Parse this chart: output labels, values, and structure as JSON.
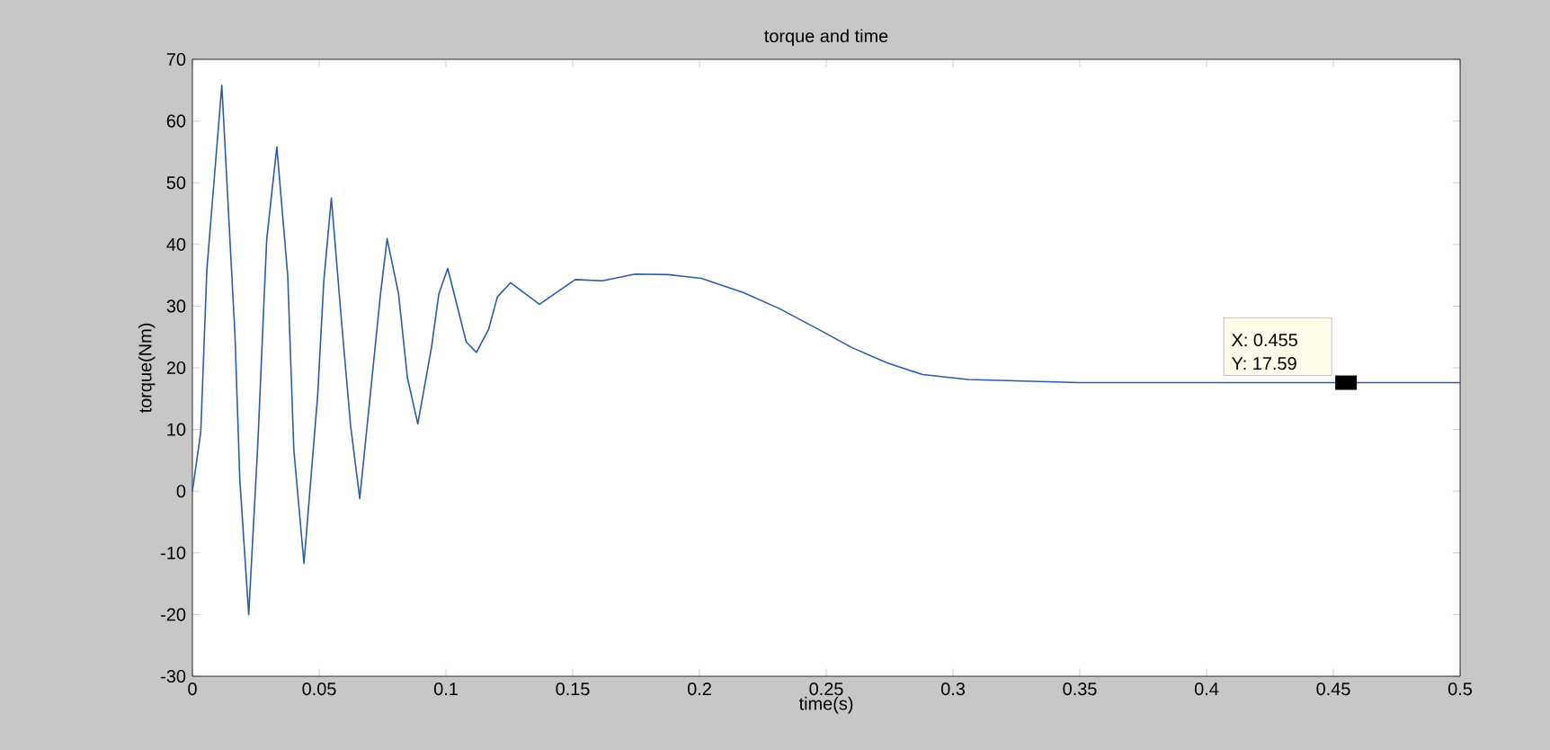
{
  "chart_data": {
    "type": "line",
    "title": "torque and time",
    "xlabel": "time(s)",
    "ylabel": "torque(Nm)",
    "x": [
      0,
      0.0033,
      0.0057,
      0.0116,
      0.0168,
      0.0187,
      0.0222,
      0.0258,
      0.0293,
      0.0333,
      0.0376,
      0.04,
      0.044,
      0.0494,
      0.0518,
      0.0548,
      0.0589,
      0.0624,
      0.066,
      0.0706,
      0.0742,
      0.0768,
      0.0813,
      0.0848,
      0.0889,
      0.0943,
      0.0972,
      0.1007,
      0.105,
      0.108,
      0.112,
      0.1168,
      0.1203,
      0.1255,
      0.1369,
      0.151,
      0.1617,
      0.1747,
      0.1877,
      0.2007,
      0.2172,
      0.2315,
      0.248,
      0.26,
      0.274,
      0.288,
      0.306,
      0.35,
      0.455,
      0.5
    ],
    "series": [
      {
        "color": "#2a5caa",
        "values": [
          0,
          9.6,
          35.9,
          65.8,
          25.2,
          1.9,
          -20,
          7.7,
          40.8,
          55.8,
          34.9,
          6.7,
          -11.7,
          15.5,
          33.9,
          47.5,
          27.1,
          10.6,
          -1.2,
          17.4,
          32,
          40.9,
          32,
          18.4,
          10.9,
          23.3,
          32,
          36.1,
          29.1,
          24.2,
          22.5,
          26.2,
          31.5,
          33.8,
          30.3,
          34.3,
          34.1,
          35.2,
          35.1,
          34.5,
          32.2,
          29.6,
          26,
          23.3,
          20.8,
          18.9,
          18.1,
          17.6,
          17.6,
          17.6
        ]
      }
    ],
    "xlim": [
      0,
      0.5
    ],
    "ylim": [
      -30,
      70
    ],
    "xticks": [
      0,
      0.05,
      0.1,
      0.15,
      0.2,
      0.25,
      0.3,
      0.35,
      0.4,
      0.45,
      0.5
    ],
    "yticks": [
      -30,
      -20,
      -10,
      0,
      10,
      20,
      30,
      40,
      50,
      60,
      70
    ],
    "annotations": [
      "X: 0.455",
      {
        "text": "Y: 17.59",
        "x": 0.455,
        "y": 17.59
      }
    ]
  }
}
